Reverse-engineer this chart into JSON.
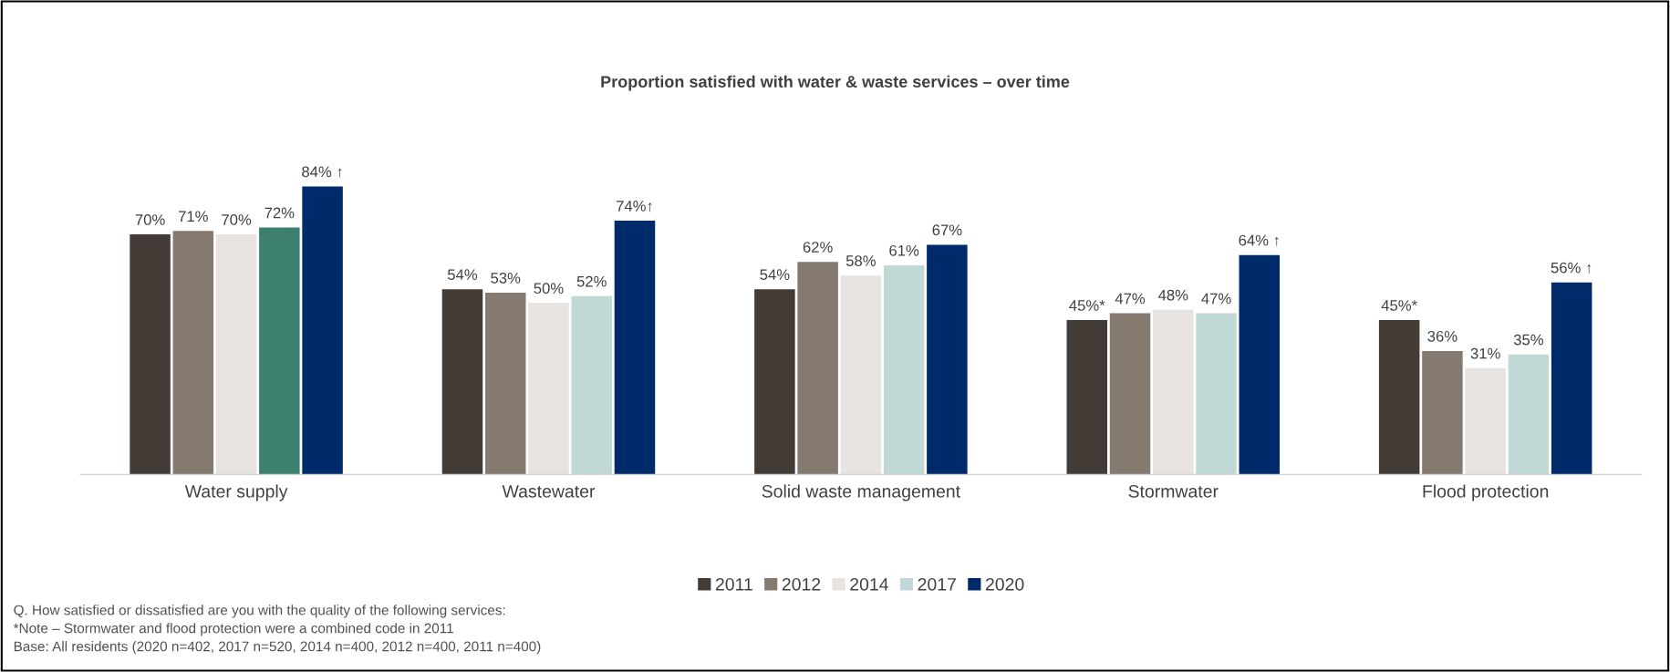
{
  "chart_data": {
    "type": "bar",
    "title": "Proportion satisfied with water & waste services – over time",
    "categories": [
      "Water supply",
      "Wastewater",
      "Solid waste management",
      "Stormwater",
      "Flood protection"
    ],
    "series": [
      {
        "name": "2011",
        "color": "#433c36",
        "values": [
          70,
          54,
          54,
          45,
          45
        ],
        "value_labels": [
          "70%",
          "54%",
          "54%",
          "45%*",
          "45%*"
        ]
      },
      {
        "name": "2012",
        "color": "#857a70",
        "values": [
          71,
          53,
          62,
          47,
          36
        ],
        "value_labels": [
          "71%",
          "53%",
          "62%",
          "47%",
          "36%"
        ]
      },
      {
        "name": "2014",
        "color": "#e6e3e1",
        "values": [
          70,
          50,
          58,
          48,
          31
        ],
        "value_labels": [
          "70%",
          "50%",
          "58%",
          "48%",
          "31%"
        ]
      },
      {
        "name": "2017",
        "color": "#c0d9d6",
        "colors": [
          "#3d8070",
          "#c0d9d6",
          "#c0d9d6",
          "#c0d9d6",
          "#c0d9d6"
        ],
        "values": [
          72,
          52,
          61,
          47,
          35
        ],
        "value_labels": [
          "72%",
          "52%",
          "61%",
          "47%",
          "35%"
        ]
      },
      {
        "name": "2020",
        "color": "#002b6b",
        "values": [
          84,
          74,
          67,
          64,
          56
        ],
        "value_labels": [
          "84% ↑",
          "74%↑",
          "67%",
          "64% ↑",
          "56% ↑"
        ]
      }
    ],
    "legend": "bottom",
    "grid": false,
    "annotations": [
      "Q. How satisfied or dissatisfied are you with the quality of the following services:",
      "*Note – Stormwater and flood protection were a combined code in 2011",
      "Base: All residents (2020 n=402, 2017 n=520, 2014 n=400, 2012 n=400, 2011 n=400)"
    ]
  }
}
